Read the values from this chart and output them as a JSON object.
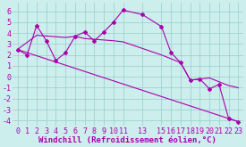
{
  "xlabel": "Windchill (Refroidissement éolien,°C)",
  "bg_color": "#cceeed",
  "line_color": "#aa00aa",
  "grid_color": "#99cccc",
  "xlim": [
    -0.5,
    23.5
  ],
  "ylim": [
    -4.5,
    6.8
  ],
  "xticks": [
    0,
    1,
    2,
    3,
    4,
    5,
    6,
    7,
    8,
    9,
    10,
    11,
    13,
    15,
    16,
    17,
    18,
    19,
    20,
    21,
    22,
    23
  ],
  "yticks": [
    -4,
    -3,
    -2,
    -1,
    0,
    1,
    2,
    3,
    4,
    5,
    6
  ],
  "line1_x": [
    0,
    1,
    2,
    3,
    4,
    5,
    6,
    7,
    8,
    9,
    10,
    11,
    13,
    15,
    16,
    17,
    18,
    19,
    20,
    21,
    22,
    23
  ],
  "line1_y": [
    2.5,
    2.0,
    4.7,
    3.3,
    1.5,
    2.2,
    3.7,
    4.1,
    3.3,
    4.1,
    5.0,
    6.1,
    5.7,
    4.6,
    2.2,
    1.3,
    -0.3,
    -0.2,
    -1.1,
    -0.7,
    -3.8,
    -4.1
  ],
  "line2_x": [
    0,
    23
  ],
  "line2_y": [
    2.5,
    -4.1
  ],
  "line3_x": [
    0,
    2,
    5,
    6,
    7,
    10,
    11,
    15,
    17,
    18,
    19,
    20,
    22,
    23
  ],
  "line3_y": [
    2.5,
    3.8,
    3.6,
    3.7,
    3.5,
    3.3,
    3.2,
    2.0,
    1.3,
    -0.3,
    -0.2,
    -0.1,
    -0.8,
    -1.0
  ],
  "fontsize_xlabel": 6.5,
  "fontsize_tick": 6
}
